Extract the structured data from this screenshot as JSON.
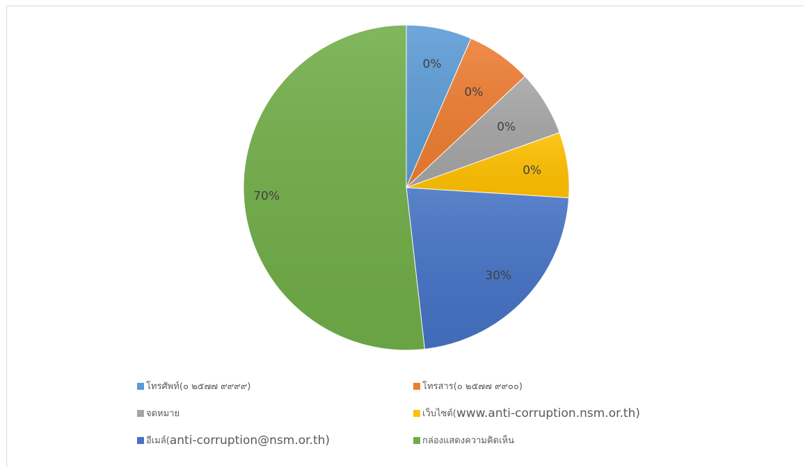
{
  "chart_data": {
    "type": "pie",
    "slices": [
      {
        "label": "โทรศัพท์(๐ ๒๕๗๗ ๙๙๙๙)",
        "value": 0,
        "display_label": "0%",
        "color": "#5B9BD5"
      },
      {
        "label": "โทรสาร(๐ ๒๕๗๗ ๙๙๐๐)",
        "value": 0,
        "display_label": "0%",
        "color": "#ED7D31"
      },
      {
        "label": "จดหมาย",
        "value": 0,
        "display_label": "0%",
        "color": "#A5A5A5"
      },
      {
        "label": "เว็บไซต์(www.anti-corruption.nsm.or.th)",
        "value": 0,
        "display_label": "0%",
        "color": "#FFC000"
      },
      {
        "label": "อีเมล์(anti-corruption@nsm.or.th)",
        "value": 30,
        "display_label": "30%",
        "color": "#4472C4"
      },
      {
        "label": "กล่องแสดงความคิดเห็น",
        "value": 70,
        "display_label": "70%",
        "color": "#70AD47"
      }
    ],
    "legend_position": "bottom"
  },
  "legend": {
    "rows": [
      [
        {
          "text": "โทรศัพท์(๐ ๒๕๗๗ ๙๙๙๙)",
          "color": "#5B9BD5"
        },
        {
          "text": "โทรสาร(๐ ๒๕๗๗ ๙๙๐๐)",
          "color": "#ED7D31"
        }
      ],
      [
        {
          "text": "จดหมาย",
          "color": "#A5A5A5"
        },
        {
          "text_prefix": "เว็บไซต์(",
          "text_main": "www.anti-corruption.nsm.or.th)",
          "color": "#FFC000"
        }
      ],
      [
        {
          "text_prefix": "อีเมล์(",
          "text_main": "anti-corruption@nsm.or.th)",
          "color": "#4472C4"
        },
        {
          "text": "กล่องแสดงความคิดเห็น",
          "color": "#70AD47"
        }
      ]
    ]
  }
}
